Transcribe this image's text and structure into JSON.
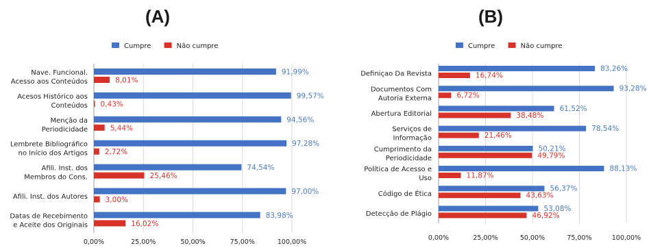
{
  "chart_data": [
    {
      "type": "bar",
      "orientation": "horizontal",
      "title": "(A)",
      "categories": [
        [
          "Nave. Funcional.",
          "Acesso aos Conteúdos"
        ],
        [
          "Acesos Histórico aos",
          "Conteúdos"
        ],
        [
          "Menção da",
          "Periodicidade"
        ],
        [
          "Lembrete Bibliográfico",
          "no Início dos Artigos"
        ],
        [
          "Afili. Inst. dos",
          "Membros do Cons."
        ],
        [
          "Afili. Inst. dos Autores"
        ],
        [
          "Datas de Recebimento",
          "e Aceite dos Originais"
        ]
      ],
      "series": [
        {
          "name": "Cumpre",
          "values": [
            91.99,
            99.57,
            94.56,
            97.28,
            74.54,
            97.0,
            83.98
          ],
          "labels": [
            "91,99%",
            "99,57%",
            "94,56%",
            "97,28%",
            "74,54%",
            "97,00%",
            "83,98%"
          ]
        },
        {
          "name": "Não cumpre",
          "values": [
            8.01,
            0.43,
            5.44,
            2.72,
            25.46,
            3.0,
            16.02
          ],
          "labels": [
            "8,01%",
            "0,43%",
            "5,44%",
            "2,72%",
            "25,46%",
            "3,00%",
            "16,02%"
          ]
        }
      ],
      "xlim": [
        0,
        100
      ],
      "xticks": [
        "0,00%",
        "25,00%",
        "50,00%",
        "75,00%",
        "100,00%"
      ],
      "grid": true,
      "legend": "top"
    },
    {
      "type": "bar",
      "orientation": "horizontal",
      "title": "(B)",
      "categories": [
        [
          "Definiçao Da Revista"
        ],
        [
          "Documentos Com",
          "Autoria Externa"
        ],
        [
          "Abertura Editorial"
        ],
        [
          "Serviços de",
          "Informação"
        ],
        [
          "Cumprimento da",
          "Periodicidade"
        ],
        [
          "Política de Acesso e",
          "Uso"
        ],
        [
          "Código de Ética"
        ],
        [
          "Detecção de Plágio"
        ]
      ],
      "series": [
        {
          "name": "Cumpre",
          "values": [
            83.26,
            93.28,
            61.52,
            78.54,
            50.21,
            88.13,
            56.37,
            53.08
          ],
          "labels": [
            "83,26%",
            "93,28%",
            "61,52%",
            "78,54%",
            "50,21%",
            "88,13%",
            "56,37%",
            "53,08%"
          ]
        },
        {
          "name": "Não cumpre",
          "values": [
            16.74,
            6.72,
            38.48,
            21.46,
            49.79,
            11.87,
            43.63,
            46.92
          ],
          "labels": [
            "16,74%",
            "6,72%",
            "38,48%",
            "21,46%",
            "49,79%",
            "11,87%",
            "43,63%",
            "46,92%"
          ]
        }
      ],
      "xlim": [
        0,
        100
      ],
      "xticks": [
        "0,00%",
        "25,00%",
        "50,00%",
        "75,00%",
        "100,00%"
      ],
      "grid": true,
      "legend": "top"
    }
  ],
  "colors": {
    "cumpre": "#4472c4",
    "nao_cumpre": "#d8332a",
    "grid": "#d9d9d9",
    "axis": "#999999"
  }
}
